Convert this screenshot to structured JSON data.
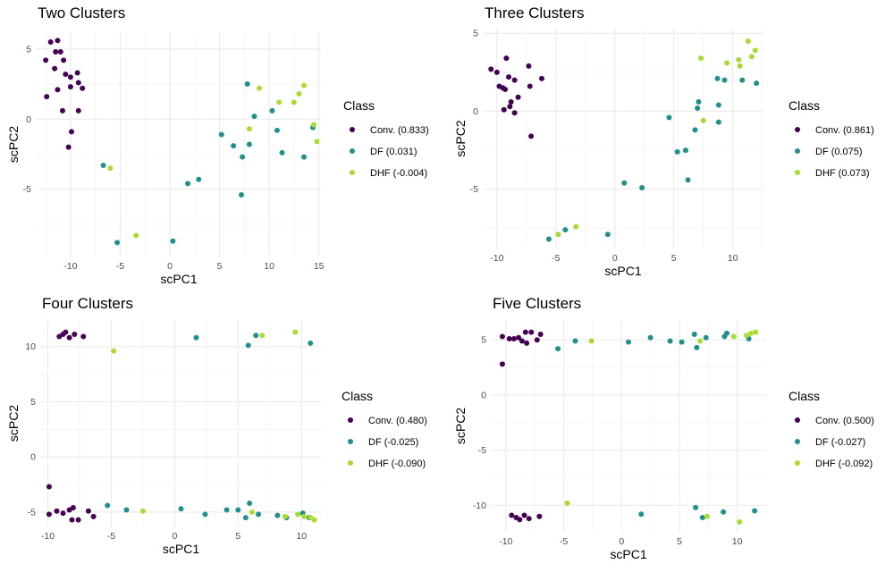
{
  "colors": {
    "conv": "#440154",
    "df": "#21908C",
    "dhf": "#A8DB34"
  },
  "chart_data": [
    {
      "type": "scatter",
      "title": "Two Clusters",
      "xlabel": "scPC1",
      "ylabel": "scPC2",
      "xlim": [
        -13.5,
        15.3
      ],
      "ylim": [
        -9.8,
        6.2
      ],
      "xticks": [
        -10,
        -5,
        0,
        5,
        10,
        15
      ],
      "yticks": [
        -5,
        0,
        5
      ],
      "grid": true,
      "legend_position": "right",
      "legend_title": "Class",
      "series": [
        {
          "name": "Conv. (0.833)",
          "color_key": "conv",
          "points": [
            [
              -12.5,
              4.2
            ],
            [
              -12.0,
              5.5
            ],
            [
              -11.5,
              4.8
            ],
            [
              -11.3,
              5.6
            ],
            [
              -11.0,
              4.8
            ],
            [
              -10.7,
              4.2
            ],
            [
              -11.6,
              3.6
            ],
            [
              -10.5,
              3.2
            ],
            [
              -10.0,
              3.0
            ],
            [
              -9.3,
              3.3
            ],
            [
              -9.2,
              2.6
            ],
            [
              -10.0,
              2.3
            ],
            [
              -11.3,
              2.1
            ],
            [
              -8.8,
              2.2
            ],
            [
              -12.4,
              1.6
            ],
            [
              -10.8,
              0.6
            ],
            [
              -9.2,
              0.6
            ],
            [
              -9.9,
              -0.9
            ],
            [
              -10.2,
              -2.0
            ]
          ]
        },
        {
          "name": "DF (0.031)",
          "color_key": "df",
          "points": [
            [
              -6.7,
              -3.3
            ],
            [
              -5.3,
              -8.8
            ],
            [
              0.3,
              -8.7
            ],
            [
              1.8,
              -4.6
            ],
            [
              2.9,
              -4.3
            ],
            [
              5.2,
              -1.1
            ],
            [
              6.4,
              -1.9
            ],
            [
              7.3,
              -2.7
            ],
            [
              7.2,
              -5.4
            ],
            [
              7.8,
              2.5
            ],
            [
              8.5,
              0.2
            ],
            [
              8.0,
              -1.8
            ],
            [
              10.3,
              0.6
            ],
            [
              10.8,
              -0.8
            ],
            [
              11.3,
              -2.4
            ],
            [
              13.5,
              -2.7
            ],
            [
              14.4,
              -0.6
            ]
          ]
        },
        {
          "name": "DHF (-0.004)",
          "color_key": "dhf",
          "points": [
            [
              -6.0,
              -3.5
            ],
            [
              -3.4,
              -8.3
            ],
            [
              9.0,
              2.2
            ],
            [
              8.0,
              -0.7
            ],
            [
              11.0,
              1.2
            ],
            [
              12.5,
              1.2
            ],
            [
              13.0,
              1.8
            ],
            [
              13.5,
              2.4
            ],
            [
              14.5,
              -0.4
            ],
            [
              14.8,
              -1.6
            ]
          ]
        }
      ]
    },
    {
      "type": "scatter",
      "title": "Three Clusters",
      "xlabel": "scPC1",
      "ylabel": "scPC2",
      "xlim": [
        -11.2,
        12.6
      ],
      "ylim": [
        -8.8,
        5.3
      ],
      "xticks": [
        -10,
        -5,
        0,
        5,
        10
      ],
      "yticks": [
        -5,
        0,
        5
      ],
      "grid": true,
      "legend_position": "right",
      "legend_title": "Class",
      "series": [
        {
          "name": "Conv. (0.861)",
          "color_key": "conv",
          "points": [
            [
              -10.5,
              2.7
            ],
            [
              -10.0,
              2.5
            ],
            [
              -9.8,
              1.6
            ],
            [
              -9.5,
              1.5
            ],
            [
              -9.2,
              3.4
            ],
            [
              -9.0,
              2.2
            ],
            [
              -8.5,
              2.0
            ],
            [
              -9.3,
              1.4
            ],
            [
              -8.8,
              0.6
            ],
            [
              -8.2,
              0.9
            ],
            [
              -8.9,
              0.3
            ],
            [
              -9.4,
              0.1
            ],
            [
              -8.5,
              -0.1
            ],
            [
              -7.3,
              2.9
            ],
            [
              -7.2,
              1.6
            ],
            [
              -6.2,
              2.1
            ],
            [
              -7.1,
              -1.6
            ]
          ]
        },
        {
          "name": "DF (0.075)",
          "color_key": "df",
          "points": [
            [
              -5.6,
              -8.2
            ],
            [
              -4.2,
              -7.6
            ],
            [
              -0.6,
              -7.9
            ],
            [
              0.8,
              -4.6
            ],
            [
              2.3,
              -4.9
            ],
            [
              4.6,
              -0.4
            ],
            [
              5.3,
              -2.6
            ],
            [
              6.0,
              -2.5
            ],
            [
              6.2,
              -4.4
            ],
            [
              6.8,
              -1.2
            ],
            [
              7.0,
              0.2
            ],
            [
              7.1,
              0.6
            ],
            [
              8.7,
              2.1
            ],
            [
              8.8,
              0.4
            ],
            [
              9.3,
              2.0
            ],
            [
              10.8,
              2.0
            ],
            [
              12.0,
              1.8
            ],
            [
              8.8,
              -0.7
            ]
          ]
        },
        {
          "name": "DHF (0.073)",
          "color_key": "dhf",
          "points": [
            [
              -4.8,
              -7.9
            ],
            [
              -3.3,
              -7.4
            ],
            [
              7.3,
              3.4
            ],
            [
              7.5,
              -0.6
            ],
            [
              9.5,
              3.1
            ],
            [
              10.5,
              3.3
            ],
            [
              10.6,
              2.9
            ],
            [
              11.3,
              4.5
            ],
            [
              11.6,
              3.5
            ],
            [
              11.9,
              3.9
            ]
          ]
        }
      ]
    },
    {
      "type": "scatter",
      "title": "Four Clusters",
      "xlabel": "scPC1",
      "ylabel": "scPC2",
      "xlim": [
        -10.6,
        11.6
      ],
      "ylim": [
        -6.3,
        12.4
      ],
      "xticks": [
        -10,
        -5,
        0,
        5,
        10
      ],
      "yticks": [
        -5,
        0,
        5,
        10
      ],
      "grid": true,
      "legend_position": "right",
      "legend_title": "Class",
      "series": [
        {
          "name": "Conv. (0.480)",
          "color_key": "conv",
          "points": [
            [
              -9.1,
              10.9
            ],
            [
              -8.8,
              11.1
            ],
            [
              -8.6,
              11.3
            ],
            [
              -8.3,
              10.8
            ],
            [
              -7.9,
              11.1
            ],
            [
              -7.2,
              10.9
            ],
            [
              -9.9,
              -2.7
            ],
            [
              -9.9,
              -5.2
            ],
            [
              -9.3,
              -4.9
            ],
            [
              -8.8,
              -5.1
            ],
            [
              -8.3,
              -4.8
            ],
            [
              -8.1,
              -5.7
            ],
            [
              -7.6,
              -5.7
            ],
            [
              -6.8,
              -4.9
            ],
            [
              -6.4,
              -5.4
            ],
            [
              -8.0,
              -4.6
            ]
          ]
        },
        {
          "name": "DF (-0.025)",
          "color_key": "df",
          "points": [
            [
              1.7,
              10.8
            ],
            [
              5.8,
              10.1
            ],
            [
              6.4,
              11.0
            ],
            [
              10.7,
              10.3
            ],
            [
              -5.3,
              -4.4
            ],
            [
              -3.8,
              -4.8
            ],
            [
              0.5,
              -4.7
            ],
            [
              2.4,
              -5.2
            ],
            [
              4.1,
              -4.8
            ],
            [
              5.0,
              -4.8
            ],
            [
              5.6,
              -5.5
            ],
            [
              5.9,
              -4.2
            ],
            [
              6.6,
              -5.2
            ],
            [
              8.1,
              -5.3
            ],
            [
              8.8,
              -5.5
            ],
            [
              10.1,
              -5.1
            ],
            [
              10.6,
              -5.5
            ]
          ]
        },
        {
          "name": "DHF (-0.090)",
          "color_key": "dhf",
          "points": [
            [
              -4.8,
              9.6
            ],
            [
              6.9,
              11.0
            ],
            [
              9.5,
              11.3
            ],
            [
              -2.5,
              -4.9
            ],
            [
              6.1,
              -5.0
            ],
            [
              8.7,
              -5.4
            ],
            [
              9.7,
              -5.2
            ],
            [
              10.2,
              -5.4
            ],
            [
              10.7,
              -5.5
            ],
            [
              11.0,
              -5.7
            ]
          ]
        }
      ]
    },
    {
      "type": "scatter",
      "title": "Five Clusters",
      "xlabel": "scPC1",
      "ylabel": "scPC2",
      "xlim": [
        -11.3,
        12.5
      ],
      "ylim": [
        -12.4,
        6.8
      ],
      "xticks": [
        -10,
        -5,
        0,
        5,
        10
      ],
      "yticks": [
        -10,
        -5,
        0,
        5
      ],
      "grid": true,
      "legend_position": "right",
      "legend_title": "Class",
      "series": [
        {
          "name": "Conv. (0.500)",
          "color_key": "conv",
          "points": [
            [
              -10.3,
              5.3
            ],
            [
              -9.7,
              5.1
            ],
            [
              -9.3,
              5.1
            ],
            [
              -8.9,
              5.2
            ],
            [
              -8.6,
              4.9
            ],
            [
              -8.3,
              5.7
            ],
            [
              -8.2,
              4.7
            ],
            [
              -7.8,
              5.7
            ],
            [
              -7.3,
              5.0
            ],
            [
              -7.0,
              5.5
            ],
            [
              -10.3,
              2.8
            ],
            [
              -9.5,
              -10.9
            ],
            [
              -9.1,
              -11.1
            ],
            [
              -8.8,
              -11.3
            ],
            [
              -8.4,
              -10.9
            ],
            [
              -8.0,
              -11.2
            ],
            [
              -7.1,
              -11.0
            ]
          ]
        },
        {
          "name": "DF (-0.027)",
          "color_key": "df",
          "points": [
            [
              -5.5,
              4.2
            ],
            [
              -4.0,
              4.9
            ],
            [
              0.6,
              4.8
            ],
            [
              2.5,
              5.2
            ],
            [
              4.2,
              4.9
            ],
            [
              5.2,
              4.8
            ],
            [
              6.3,
              5.5
            ],
            [
              6.5,
              4.3
            ],
            [
              7.3,
              5.2
            ],
            [
              8.9,
              5.3
            ],
            [
              9.1,
              5.6
            ],
            [
              11.0,
              5.1
            ],
            [
              1.7,
              -10.8
            ],
            [
              6.4,
              -10.2
            ],
            [
              7.0,
              -11.1
            ],
            [
              8.8,
              -10.6
            ],
            [
              11.5,
              -10.5
            ]
          ]
        },
        {
          "name": "DHF (-0.092)",
          "color_key": "dhf",
          "points": [
            [
              -4.7,
              -9.8
            ],
            [
              -2.6,
              4.9
            ],
            [
              6.8,
              4.9
            ],
            [
              9.7,
              5.3
            ],
            [
              10.8,
              5.4
            ],
            [
              11.2,
              5.6
            ],
            [
              11.6,
              5.7
            ],
            [
              7.4,
              -11.0
            ],
            [
              10.2,
              -11.5
            ]
          ]
        }
      ]
    }
  ]
}
